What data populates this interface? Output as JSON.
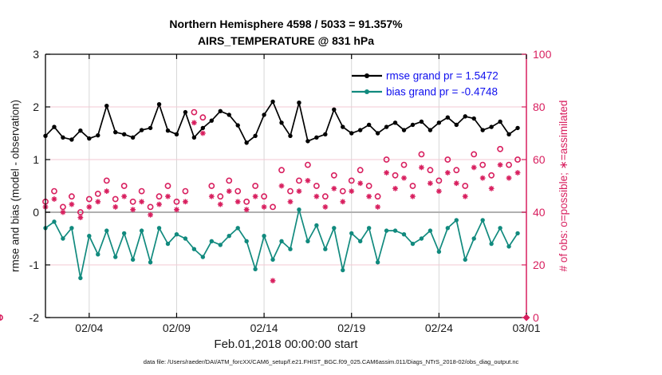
{
  "header": {
    "title_line1": "Northern Hemisphere 4598 / 5033 = 91.357%",
    "title_line2": "AIRS_TEMPERATURE @ 831 hPa"
  },
  "legend": {
    "text_color": "#0f0fee",
    "items": [
      {
        "name": "rmse",
        "label": "rmse grand pr = 1.5472",
        "color": "#000000"
      },
      {
        "name": "bias",
        "label": "bias grand pr = -0.4748",
        "color": "#118a7e"
      }
    ]
  },
  "footer": {
    "text": "data file: /Users/raeder/DAI/ATM_forcXX/CAM6_setup/f.e21.FHIST_BGC.f09_025.CAM6assim.011/Diags_NTrS_2018-02/obs_diag_output.nc"
  },
  "chart_data": {
    "type": "line",
    "title": "Northern Hemisphere 4598 / 5033 = 91.357%",
    "subtitle": "AIRS_TEMPERATURE @ 831 hPa",
    "xlabel": "Feb.01,2018 00:00:00 start",
    "ylabel_left": "rmse and bias (model - observation)",
    "ylabel_right": "# of obs: o=possible; ∗=assimilated",
    "x_start_day": 0.5,
    "x_step_days": 0.5,
    "x_range_days": [
      0.5,
      28
    ],
    "ylim_left": [
      -2,
      3
    ],
    "ylim_right": [
      0,
      100
    ],
    "x_ticks": [
      {
        "day": 3,
        "label": "02/04"
      },
      {
        "day": 8,
        "label": "02/09"
      },
      {
        "day": 13,
        "label": "02/14"
      },
      {
        "day": 18,
        "label": "02/19"
      },
      {
        "day": 23,
        "label": "02/24"
      },
      {
        "day": 28,
        "label": "03/01"
      }
    ],
    "y_ticks_left": [
      -2,
      -1,
      0,
      1,
      2,
      3
    ],
    "y_ticks_right": [
      0,
      20,
      40,
      60,
      80,
      100
    ],
    "grid": {
      "vertical_color": "#d7d7d7",
      "horizontal_color": "#f3c9d3",
      "zero_line_color": "#b0b0b0"
    },
    "colors": {
      "rmse": "#000000",
      "bias": "#118a7e",
      "obs": "#d81e5e",
      "legend_text": "#0f0fee"
    },
    "series": [
      {
        "name": "rmse",
        "axis": "left",
        "color": "#000000",
        "marker": "filled-circle",
        "line": true,
        "values": [
          1.45,
          1.62,
          1.42,
          1.38,
          1.55,
          1.4,
          1.46,
          2.02,
          1.52,
          1.48,
          1.42,
          1.56,
          1.6,
          2.05,
          1.55,
          1.48,
          1.9,
          1.42,
          1.6,
          1.74,
          1.92,
          1.85,
          1.65,
          1.32,
          1.45,
          1.85,
          2.1,
          1.7,
          1.45,
          2.08,
          1.35,
          1.42,
          1.48,
          1.95,
          1.62,
          1.5,
          1.56,
          1.66,
          1.5,
          1.62,
          1.7,
          1.56,
          1.66,
          1.72,
          1.56,
          1.7,
          1.8,
          1.66,
          1.82,
          1.78,
          1.56,
          1.62,
          1.72,
          1.48,
          1.6
        ]
      },
      {
        "name": "bias",
        "axis": "left",
        "color": "#118a7e",
        "marker": "filled-circle",
        "line": true,
        "values": [
          -0.3,
          -0.18,
          -0.5,
          -0.3,
          -1.25,
          -0.45,
          -0.8,
          -0.35,
          -0.85,
          -0.4,
          -0.9,
          -0.35,
          -0.95,
          -0.3,
          -0.6,
          -0.42,
          -0.5,
          -0.7,
          -0.85,
          -0.55,
          -0.62,
          -0.45,
          -0.3,
          -0.55,
          -1.08,
          -0.45,
          -0.9,
          -0.55,
          -0.7,
          0.05,
          -0.55,
          -0.25,
          -0.7,
          -0.3,
          -1.1,
          -0.4,
          -0.55,
          -0.3,
          -0.95,
          -0.35,
          -0.35,
          -0.42,
          -0.6,
          -0.5,
          -0.35,
          -0.75,
          -0.3,
          -0.15,
          -0.9,
          -0.5,
          -0.15,
          -0.6,
          -0.3,
          -0.65,
          -0.4
        ]
      },
      {
        "name": "possible",
        "axis": "right",
        "color": "#d81e5e",
        "marker": "open-circle",
        "line": false,
        "values": [
          44,
          48,
          42,
          46,
          40,
          45,
          47,
          52,
          45,
          50,
          44,
          48,
          42,
          46,
          50,
          44,
          48,
          78,
          76,
          50,
          46,
          52,
          48,
          44,
          50,
          46,
          42,
          56,
          48,
          52,
          58,
          50,
          46,
          54,
          48,
          52,
          56,
          50,
          46,
          60,
          54,
          58,
          50,
          62,
          56,
          52,
          60,
          56,
          50,
          62,
          58,
          54,
          64,
          58,
          60,
          0
        ]
      },
      {
        "name": "assimilated",
        "axis": "right",
        "color": "#d81e5e",
        "marker": "asterisk",
        "line": false,
        "values": [
          42,
          45,
          40,
          43,
          38,
          42,
          44,
          48,
          42,
          46,
          41,
          44,
          39,
          43,
          46,
          41,
          44,
          74,
          70,
          46,
          43,
          48,
          44,
          41,
          46,
          42,
          14,
          50,
          44,
          48,
          52,
          46,
          42,
          49,
          44,
          48,
          51,
          46,
          42,
          55,
          49,
          53,
          46,
          57,
          51,
          48,
          55,
          51,
          46,
          57,
          53,
          49,
          58,
          53,
          55,
          0
        ]
      }
    ],
    "terminal_marker": {
      "day": 28,
      "count": 0,
      "shape": "filled-diamond",
      "color": "#d81e5e"
    },
    "legend_position": "upper-right-inside",
    "grid_on": true
  }
}
